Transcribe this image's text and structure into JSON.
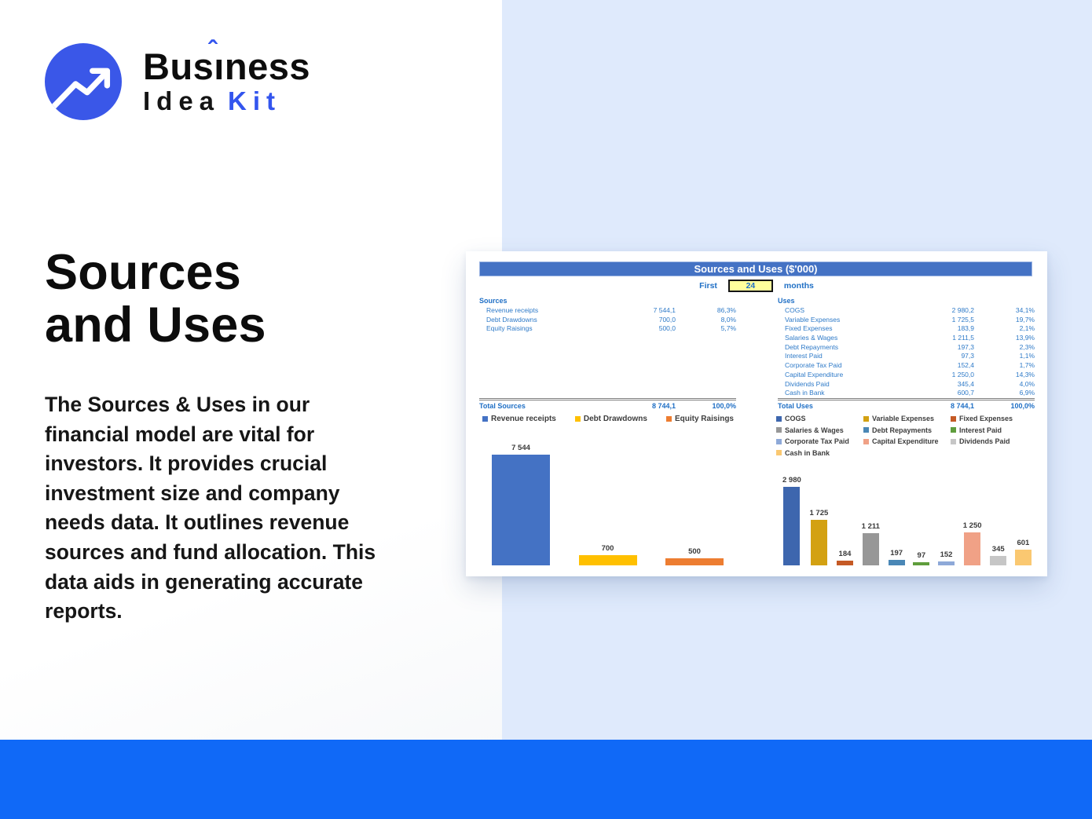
{
  "logo": {
    "brand_word1_pre": "Bus",
    "brand_word1_i": "ı",
    "brand_word1_accent": "ˆ",
    "brand_word1_post": "ness",
    "brand_word2": "Idea",
    "brand_word3": "Kit",
    "icon": "trend-arrow-icon",
    "circle_color": "#3a57e8",
    "accent_color": "#3355ee"
  },
  "hero": {
    "title_line1": "Sources",
    "title_line2": "and Uses",
    "description": "The Sources & Uses in our financial model are vital for investors. It provides crucial investment size and company needs data. It outlines revenue sources and fund allocation. This data aids in generating accurate reports."
  },
  "spreadsheet": {
    "title": "Sources and Uses ($'000)",
    "period_label_before": "First",
    "period_value": "24",
    "period_label_after": "months",
    "sources": {
      "header": "Sources",
      "rows": [
        {
          "label": "Revenue receipts",
          "value": "7 544,1",
          "pct": "86,3%"
        },
        {
          "label": "Debt Drawdowns",
          "value": "700,0",
          "pct": "8,0%"
        },
        {
          "label": "Equity Raisings",
          "value": "500,0",
          "pct": "5,7%"
        }
      ],
      "total": {
        "label": "Total Sources",
        "value": "8 744,1",
        "pct": "100,0%"
      }
    },
    "uses": {
      "header": "Uses",
      "rows": [
        {
          "label": "COGS",
          "value": "2 980,2",
          "pct": "34,1%"
        },
        {
          "label": "Variable Expenses",
          "value": "1 725,5",
          "pct": "19,7%"
        },
        {
          "label": "Fixed Expenses",
          "value": "183,9",
          "pct": "2,1%"
        },
        {
          "label": "Salaries & Wages",
          "value": "1 211,5",
          "pct": "13,9%"
        },
        {
          "label": "Debt Repayments",
          "value": "197,3",
          "pct": "2,3%"
        },
        {
          "label": "Interest Paid",
          "value": "97,3",
          "pct": "1,1%"
        },
        {
          "label": "Corporate Tax Paid",
          "value": "152,4",
          "pct": "1,7%"
        },
        {
          "label": "Capital Expenditure",
          "value": "1 250,0",
          "pct": "14,3%"
        },
        {
          "label": "Dividends Paid",
          "value": "345,4",
          "pct": "4,0%"
        },
        {
          "label": "Cash in Bank",
          "value": "600,7",
          "pct": "6,9%"
        }
      ],
      "total": {
        "label": "Total Uses",
        "value": "8 744,1",
        "pct": "100,0%"
      }
    }
  },
  "chart_data": [
    {
      "type": "bar",
      "title": "Sources breakdown",
      "categories": [
        "Revenue receipts",
        "Debt Drawdowns",
        "Equity Raisings"
      ],
      "values": [
        7544,
        700,
        500
      ],
      "bar_labels": [
        "7 544",
        "700",
        "500"
      ],
      "colors": [
        "#4472c4",
        "#ffc000",
        "#ed7d31"
      ],
      "legend_position": "top",
      "ylim": [
        0,
        8000
      ],
      "gridlines": false,
      "axes_visible": false
    },
    {
      "type": "bar",
      "title": "Uses breakdown",
      "categories": [
        "COGS",
        "Variable Expenses",
        "Fixed Expenses",
        "Salaries & Wages",
        "Debt Repayments",
        "Interest Paid",
        "Corporate Tax Paid",
        "Capital Expenditure",
        "Dividends Paid",
        "Cash in Bank"
      ],
      "values": [
        2980,
        1725,
        184,
        1211,
        197,
        97,
        152,
        1250,
        345,
        601
      ],
      "bar_labels": [
        "2 980",
        "1 725",
        "184",
        "1 211",
        "197",
        "97",
        "152",
        "1 250",
        "345",
        "601"
      ],
      "colors": [
        "#3d66ae",
        "#d3a112",
        "#c55a25",
        "#979797",
        "#4a87b6",
        "#5f9d3c",
        "#8ea9d8",
        "#f0a186",
        "#c6c6c6",
        "#fac871"
      ],
      "legend_position": "top",
      "ylim": [
        0,
        3100
      ],
      "gridlines": false,
      "axes_visible": false
    }
  ],
  "colors": {
    "footer_blue": "#1069f7",
    "panel_blue": "#dfeafc",
    "sheet_header_blue": "#4472c4",
    "table_text_blue": "#1f6fc5",
    "input_bg_yellow": "#ffff9c"
  }
}
